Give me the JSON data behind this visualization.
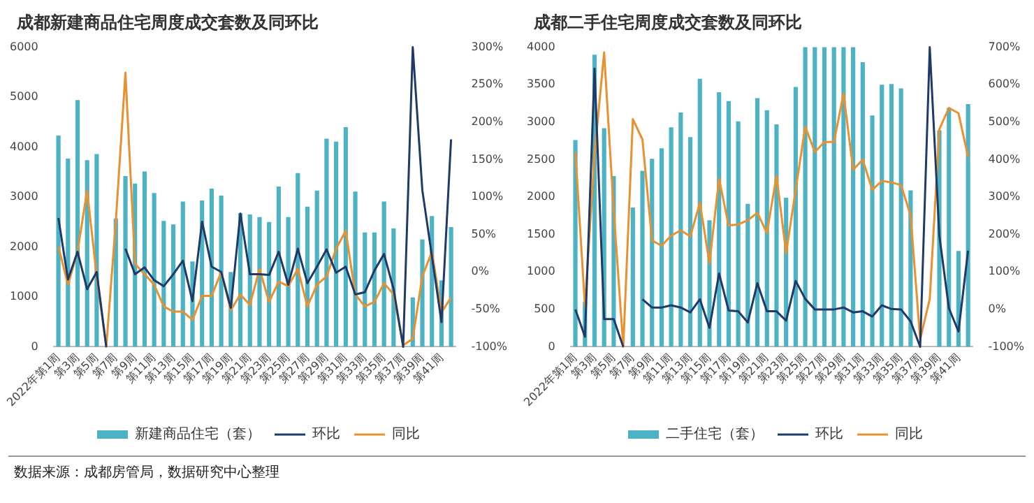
{
  "chart_data": [
    {
      "type": "bar",
      "title": "成都新建商品住宅周度成交套数及同环比",
      "categories": [
        "2022年第1周",
        null,
        "第3周",
        null,
        "第5周",
        null,
        "第7周",
        null,
        "第9周",
        null,
        "第11周",
        null,
        "第13周",
        null,
        "第15周",
        null,
        "第17周",
        null,
        "第19周",
        null,
        "第21周",
        null,
        "第23周",
        null,
        "第25周",
        null,
        "第27周",
        null,
        "第29周",
        null,
        "第31周",
        null,
        "第33周",
        null,
        "第35周",
        null,
        "第37周",
        null,
        "第39周",
        null,
        "第41周",
        null
      ],
      "series": [
        {
          "name": "新建商品住宅（套）",
          "color": "#4db3c4",
          "values": [
            4230,
            3770,
            4940,
            3740,
            3860,
            null,
            2570,
            3420,
            3270,
            3510,
            3080,
            2520,
            2450,
            2910,
            1710,
            2930,
            3170,
            3030,
            1500,
            2680,
            2650,
            2600,
            2500,
            3210,
            2600,
            3480,
            2810,
            3130,
            4170,
            4110,
            4400,
            3110,
            2290,
            2290,
            2910,
            2370,
            null,
            990,
            2150,
            2620,
            1330,
            2400
          ]
        },
        {
          "name": "环比",
          "type": "line",
          "axis": "y2",
          "color": "#1f3a68",
          "values": [
            72,
            -10,
            27,
            -23,
            0,
            -100,
            null,
            31,
            -3,
            6,
            -11,
            -19,
            -3,
            15,
            -39,
            67,
            7,
            0,
            -48,
            78,
            -3,
            -3,
            -4,
            27,
            -17,
            31,
            -15,
            7,
            30,
            -1,
            7,
            -30,
            -27,
            2,
            24,
            -23,
            -100,
            300,
            109,
            21,
            -67,
            177
          ]
        },
        {
          "name": "同比",
          "type": "line",
          "axis": "y2",
          "color": "#e8912e",
          "values": [
            34,
            -17,
            27,
            109,
            -6,
            -100,
            68,
            266,
            11,
            -3,
            -17,
            -46,
            -53,
            -53,
            -64,
            -32,
            -32,
            0,
            -51,
            -30,
            -44,
            4,
            -40,
            -13,
            -19,
            4,
            -46,
            -17,
            -6,
            31,
            55,
            -30,
            -46,
            -40,
            -15,
            -30,
            -98,
            -89,
            -6,
            27,
            -54,
            -34
          ]
        }
      ],
      "ylim": [
        0,
        6000
      ],
      "yticks": [
        0,
        1000,
        2000,
        3000,
        4000,
        5000,
        6000
      ],
      "y2lim": [
        -100,
        300
      ],
      "y2ticks": [
        {
          "value": -100,
          "label": "-100%"
        },
        {
          "value": -50,
          "label": "-50%"
        },
        {
          "value": 0,
          "label": "0%"
        },
        {
          "value": 50,
          "label": "50%"
        },
        {
          "value": 100,
          "label": "100%"
        },
        {
          "value": 150,
          "label": "150%"
        },
        {
          "value": 200,
          "label": "200%"
        },
        {
          "value": 250,
          "label": "250%"
        },
        {
          "value": 300,
          "label": "300%"
        }
      ],
      "grid": false,
      "legend": "bottom",
      "marker": "none",
      "line_style": "solid",
      "annotations": [
        "数据来源：成都房管局，数据研究中心整理"
      ]
    },
    {
      "type": "bar",
      "title": "成都二手住宅周度成交套数及同环比",
      "categories": [
        "2022年第1周",
        null,
        "第3周",
        null,
        "第5周",
        null,
        "第7周",
        null,
        "第9周",
        null,
        "第11周",
        null,
        "第13周",
        null,
        "第15周",
        null,
        "第17周",
        null,
        "第19周",
        null,
        "第21周",
        null,
        "第23周",
        null,
        "第25周",
        null,
        "第27周",
        null,
        "第29周",
        null,
        "第31周",
        null,
        "第33周",
        null,
        "第35周",
        null,
        "第37周",
        null,
        "第39周",
        null,
        "第41周",
        null
      ],
      "series": [
        {
          "name": "二手住宅（套）",
          "color": "#4db3c4",
          "values": [
            2760,
            600,
            3900,
            2920,
            2280,
            null,
            1860,
            2350,
            2510,
            2650,
            2930,
            3130,
            2800,
            3580,
            1690,
            3400,
            3280,
            3010,
            1910,
            3320,
            3160,
            2970,
            1990,
            3470,
            4000,
            4000,
            4000,
            4000,
            4000,
            4000,
            3800,
            3090,
            3500,
            3510,
            3450,
            2090,
            null,
            null,
            2890,
            3190,
            1280,
            3240
          ]
        },
        {
          "name": "环比",
          "type": "line",
          "axis": "y2",
          "color": "#1f3a68",
          "values": [
            0,
            -73,
            643,
            -26,
            -26,
            -100,
            null,
            27,
            5,
            5,
            11,
            5,
            -8,
            27,
            -49,
            96,
            -3,
            -5,
            -35,
            70,
            -5,
            -5,
            -30,
            76,
            28,
            0,
            0,
            0,
            5,
            -8,
            -5,
            -19,
            11,
            1,
            0,
            -32,
            -100,
            700,
            197,
            3,
            -59,
            157
          ]
        },
        {
          "name": "同比",
          "type": "line",
          "axis": "y2",
          "color": "#e8912e",
          "values": [
            420,
            8,
            414,
            686,
            265,
            -100,
            508,
            454,
            184,
            170,
            197,
            211,
            195,
            285,
            123,
            349,
            224,
            227,
            238,
            258,
            204,
            357,
            150,
            319,
            488,
            420,
            447,
            447,
            576,
            373,
            400,
            319,
            343,
            339,
            332,
            251,
            -80,
            28,
            481,
            538,
            524,
            407
          ]
        }
      ],
      "ylim": [
        0,
        4000
      ],
      "yticks": [
        0,
        500,
        1000,
        1500,
        2000,
        2500,
        3000,
        3500,
        4000
      ],
      "y2lim": [
        -100,
        700
      ],
      "y2ticks": [
        {
          "value": -100,
          "label": "-100%"
        },
        {
          "value": 0,
          "label": "0%"
        },
        {
          "value": 100,
          "label": "100%"
        },
        {
          "value": 200,
          "label": "200%"
        },
        {
          "value": 300,
          "label": "300%"
        },
        {
          "value": 400,
          "label": "400%"
        },
        {
          "value": 500,
          "label": "500%"
        },
        {
          "value": 600,
          "label": "600%"
        },
        {
          "value": 700,
          "label": "700%"
        }
      ],
      "grid": false,
      "legend": "bottom",
      "marker": "none",
      "line_style": "solid"
    }
  ]
}
